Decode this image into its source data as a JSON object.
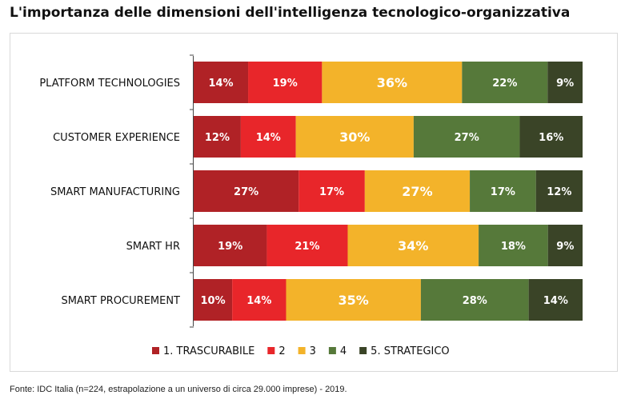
{
  "title": "L'importanza delle dimensioni dell'intelligenza tecnologico-organizzativa",
  "source": "Fonte: IDC Italia (n=224, estrapolazione a un universo di circa 29.000 imprese) - 2019.",
  "chart_data": {
    "type": "bar",
    "orientation": "horizontal",
    "stacked": true,
    "normalized_percent": true,
    "categories": [
      "PLATFORM TECHNOLOGIES",
      "CUSTOMER EXPERIENCE",
      "SMART MANUFACTURING",
      "SMART HR",
      "SMART PROCUREMENT"
    ],
    "series": [
      {
        "name": "1. TRASCURABILE",
        "color": "#b02226",
        "values": [
          14,
          12,
          27,
          19,
          10
        ],
        "labels": [
          "14%",
          "12%",
          "27%",
          "19%",
          "10%"
        ]
      },
      {
        "name": "2",
        "color": "#e8262a",
        "values": [
          19,
          14,
          17,
          21,
          14
        ],
        "labels": [
          "19%",
          "14%",
          "17%",
          "21%",
          "14%"
        ]
      },
      {
        "name": "3",
        "color": "#f3b32a",
        "values": [
          36,
          30,
          27,
          34,
          35
        ],
        "labels": [
          "36%",
          "30%",
          "27%",
          "34%",
          "35%"
        ]
      },
      {
        "name": "4",
        "color": "#56793a",
        "values": [
          22,
          27,
          17,
          18,
          28
        ],
        "labels": [
          "22%",
          "27%",
          "17%",
          "18%",
          "28%"
        ]
      },
      {
        "name": "5. STRATEGICO",
        "color": "#3a4427",
        "values": [
          9,
          16,
          12,
          9,
          14
        ],
        "labels": [
          "9%",
          "16%",
          "12%",
          "9%",
          "14%"
        ]
      }
    ],
    "legend_position": "bottom",
    "grid": false
  }
}
